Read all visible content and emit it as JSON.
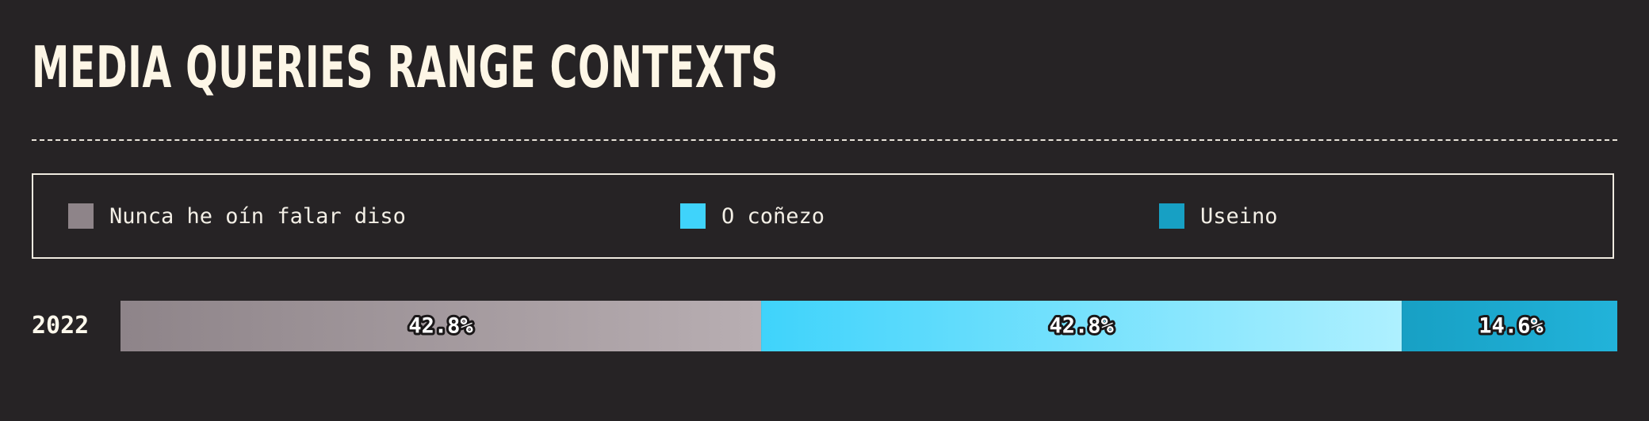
{
  "title": "MEDIA QUERIES RANGE CONTEXTS",
  "legend": [
    {
      "label": "Nunca he oín falar diso",
      "color": "#8e8489"
    },
    {
      "label": "O coñezo",
      "color": "#3fd3fb"
    },
    {
      "label": "Useino",
      "color": "#17a0c4"
    }
  ],
  "chart_data": {
    "type": "bar",
    "orientation": "horizontal",
    "stacked": true,
    "categories": [
      "2022"
    ],
    "series": [
      {
        "name": "Nunca he oín falar diso",
        "values": [
          42.8
        ],
        "label": "42.8%",
        "color_from": "#8e8489",
        "color_to": "#b8aeb2"
      },
      {
        "name": "O coñezo",
        "values": [
          42.8
        ],
        "label": "42.8%",
        "color_from": "#3fd3fb",
        "color_to": "#aef0ff"
      },
      {
        "name": "Useino",
        "values": [
          14.6
        ],
        "label": "14.6%",
        "color_from": "#17a0c4",
        "color_to": "#22b3da"
      }
    ],
    "unit": "%",
    "xlim": [
      0,
      100
    ],
    "legend_position": "top",
    "grid": false
  }
}
